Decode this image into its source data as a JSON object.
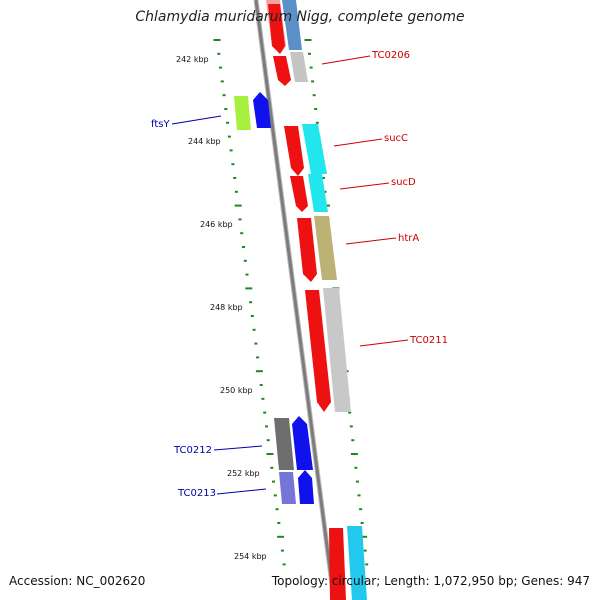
{
  "title": "Chlamydia muridarum Nigg, complete genome",
  "footer": {
    "accession": "Accession: NC_002620",
    "summary": "Topology: circular; Length: 1,072,950 bp; Genes: 947"
  },
  "colors": {
    "backbone": "#8a8a8a",
    "tick": "#1a8a1a",
    "label_forward": "#cc0000",
    "label_reverse": "#0000aa"
  },
  "axis_ticks": [
    {
      "label": "242 kbp"
    },
    {
      "label": "244 kbp"
    },
    {
      "label": "246 kbp"
    },
    {
      "label": "248 kbp"
    },
    {
      "label": "250 kbp"
    },
    {
      "label": "252 kbp"
    },
    {
      "label": "254 kbp"
    }
  ],
  "gene_labels": [
    {
      "name": "TC0206",
      "strand": "forward"
    },
    {
      "name": "ftsY",
      "strand": "reverse"
    },
    {
      "name": "sucC",
      "strand": "forward"
    },
    {
      "name": "sucD",
      "strand": "forward"
    },
    {
      "name": "htrA",
      "strand": "forward"
    },
    {
      "name": "TC0211",
      "strand": "forward"
    },
    {
      "name": "TC0212",
      "strand": "reverse"
    },
    {
      "name": "TC0213",
      "strand": "reverse"
    }
  ]
}
